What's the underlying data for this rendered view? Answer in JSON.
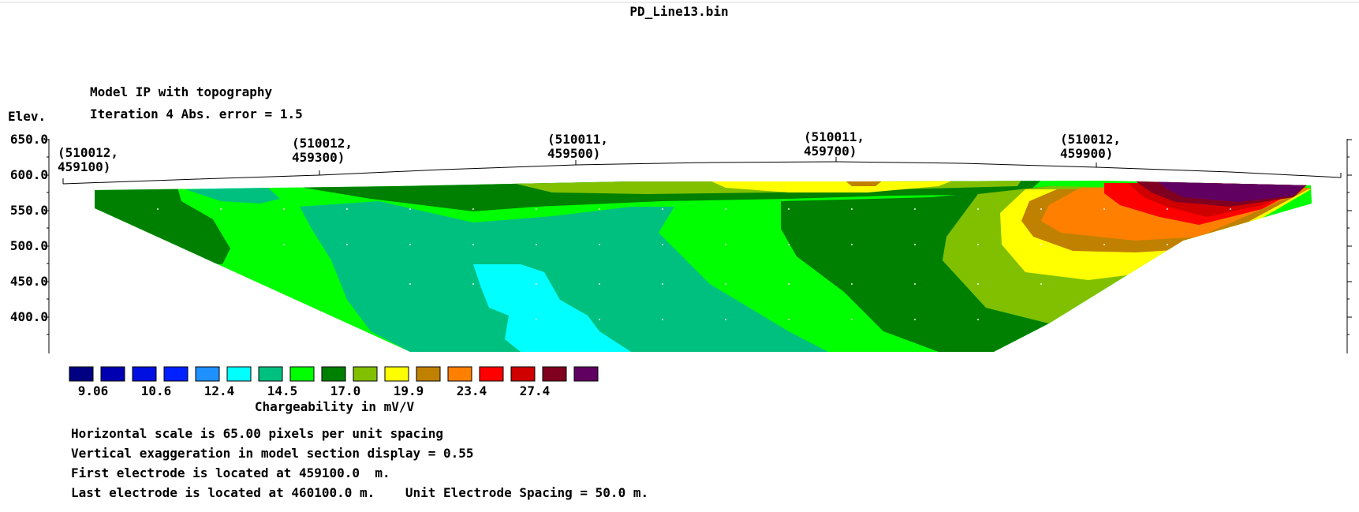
{
  "file_title": "PD_Line13.bin",
  "model_title": "Model IP with topography",
  "iteration_text": "Iteration 4 Abs. error = 1.5",
  "elev_label": "Elev.",
  "elevation_ticks": [
    "650.0",
    "600.0",
    "550.0",
    "500.0",
    "450.0",
    "400.0"
  ],
  "coordinates": [
    {
      "line1": "(510012,",
      "line2": "459100)"
    },
    {
      "line1": "(510012,",
      "line2": "459300)"
    },
    {
      "line1": "(510011,",
      "line2": "459500)"
    },
    {
      "line1": "(510011,",
      "line2": "459700)"
    },
    {
      "line1": "(510012,",
      "line2": "459900)"
    }
  ],
  "color_scale": {
    "colors": [
      "#000080",
      "#0000b0",
      "#0010e0",
      "#0020ff",
      "#1e90ff",
      "#00ffff",
      "#00c080",
      "#00ff00",
      "#008000",
      "#80c000",
      "#ffff00",
      "#c08000",
      "#ff8000",
      "#ff0000",
      "#d00000",
      "#800020",
      "#600060"
    ],
    "labels": [
      "9.06",
      "10.6",
      "12.4",
      "14.5",
      "17.0",
      "19.9",
      "23.4",
      "27.4"
    ],
    "title": "Chargeability in mV/V"
  },
  "info_lines": [
    "Horizontal scale is 65.00 pixels per unit spacing",
    "Vertical exaggeration in model section display = 0.55",
    "First electrode is located at 459100.0  m.",
    "Last electrode is located at 460100.0 m.    Unit Electrode Spacing = 50.0 m."
  ]
}
